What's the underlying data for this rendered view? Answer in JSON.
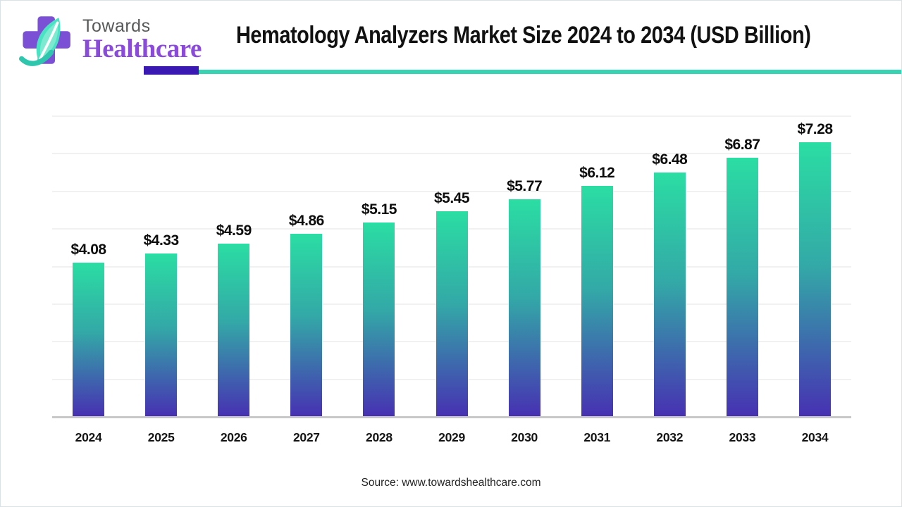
{
  "header": {
    "logo": {
      "line1": "Towards",
      "line2": "Healthcare"
    },
    "title": "Hematology Analyzers Market Size 2024 to 2034 (USD Billion)"
  },
  "chart_data": {
    "type": "bar",
    "title": "Hematology Analyzers Market Size 2024 to 2034 (USD Billion)",
    "categories": [
      "2024",
      "2025",
      "2026",
      "2027",
      "2028",
      "2029",
      "2030",
      "2031",
      "2032",
      "2033",
      "2034"
    ],
    "values": [
      4.08,
      4.33,
      4.59,
      4.86,
      5.15,
      5.45,
      5.77,
      6.12,
      6.48,
      6.87,
      7.28
    ],
    "value_labels": [
      "$4.08",
      "$4.33",
      "$4.59",
      "$4.86",
      "$5.15",
      "$5.45",
      "$5.77",
      "$6.12",
      "$6.48",
      "$6.87",
      "$7.28"
    ],
    "xlabel": "",
    "ylabel": "",
    "ylim": [
      0,
      8
    ],
    "gridline_step": 1,
    "grid": true,
    "legend": "none",
    "value_label_position": "above-bar",
    "bar_gradient": [
      "#2BDDA3",
      "#33A9A7",
      "#4731B2"
    ]
  },
  "footer": {
    "source": "Source: www.towardshealthcare.com"
  },
  "colors": {
    "underline_purple": "#3A18B2",
    "underline_teal": "#38D3B2",
    "logo_cross": "#7C50D4",
    "logo_leaf": "#49E2C2",
    "logo_leaf_light": "#A5F0DE",
    "logo_stem": "#2EC6AC",
    "logo_towards_text": "#58595B",
    "logo_healthcare_text": "#8A4BDB",
    "gridline": "#F1F1F1",
    "axis_line": "#C8C8C8"
  }
}
